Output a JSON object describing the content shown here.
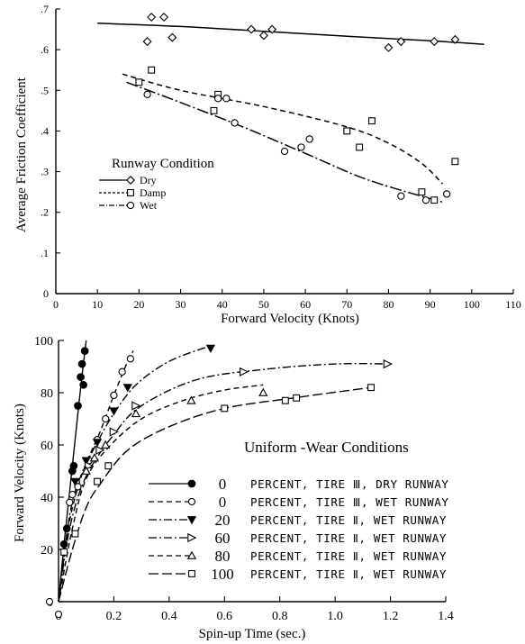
{
  "chart_data": [
    {
      "type": "scatter",
      "title": "",
      "xlabel": "Forward Velocity (Knots)",
      "ylabel": "Average Friction Coefficient",
      "xlim": [
        0,
        110
      ],
      "ylim": [
        0,
        0.7
      ],
      "xticks": [
        "0",
        "10",
        "20",
        "30",
        "40",
        "50",
        "60",
        "70",
        "80",
        "90",
        "100",
        "110"
      ],
      "yticks": [
        "0",
        ".1",
        ".2",
        ".3",
        ".4",
        ".5",
        ".6",
        ".7"
      ],
      "grid": false,
      "legend_title": "Runway Condition",
      "legend_position": "middle-left",
      "series": [
        {
          "name": "Dry",
          "marker": "diamond",
          "line": "solid",
          "points": [
            [
              22,
              0.62
            ],
            [
              23,
              0.68
            ],
            [
              26,
              0.68
            ],
            [
              28,
              0.63
            ],
            [
              47,
              0.65
            ],
            [
              50,
              0.635
            ],
            [
              52,
              0.65
            ],
            [
              80,
              0.605
            ],
            [
              83,
              0.62
            ],
            [
              91,
              0.62
            ],
            [
              96,
              0.625
            ]
          ],
          "fit": [
            [
              10,
              0.665
            ],
            [
              30,
              0.657
            ],
            [
              50,
              0.645
            ],
            [
              70,
              0.633
            ],
            [
              90,
              0.622
            ],
            [
              103,
              0.613
            ]
          ]
        },
        {
          "name": "Damp",
          "marker": "square",
          "line": "dashed",
          "points": [
            [
              20,
              0.52
            ],
            [
              23,
              0.55
            ],
            [
              38,
              0.45
            ],
            [
              39,
              0.49
            ],
            [
              70,
              0.4
            ],
            [
              73,
              0.36
            ],
            [
              76,
              0.425
            ],
            [
              88,
              0.25
            ],
            [
              91,
              0.23
            ],
            [
              96,
              0.325
            ]
          ],
          "fit": [
            [
              16,
              0.54
            ],
            [
              30,
              0.5
            ],
            [
              50,
              0.46
            ],
            [
              70,
              0.41
            ],
            [
              80,
              0.37
            ],
            [
              88,
              0.32
            ],
            [
              93,
              0.27
            ]
          ]
        },
        {
          "name": "Wet",
          "marker": "circle",
          "line": "long-dash-dot",
          "points": [
            [
              22,
              0.49
            ],
            [
              39,
              0.48
            ],
            [
              41,
              0.48
            ],
            [
              43,
              0.42
            ],
            [
              55,
              0.35
            ],
            [
              59,
              0.36
            ],
            [
              61,
              0.38
            ],
            [
              83,
              0.24
            ],
            [
              89,
              0.23
            ],
            [
              94,
              0.245
            ]
          ],
          "fit": [
            [
              17,
              0.52
            ],
            [
              30,
              0.47
            ],
            [
              45,
              0.41
            ],
            [
              60,
              0.345
            ],
            [
              75,
              0.28
            ],
            [
              93,
              0.225
            ]
          ]
        }
      ]
    },
    {
      "type": "line",
      "title": "",
      "xlabel": "Spin-up Time (sec.)",
      "ylabel": "Forward Velocity (Knots)",
      "xlim": [
        0,
        1.4
      ],
      "ylim": [
        0,
        100
      ],
      "xticks": [
        "0",
        "0.2",
        "0.4",
        "0.6",
        "0.8",
        "1.0",
        "1.2",
        "1.4"
      ],
      "yticks": [
        "0",
        "20",
        "40",
        "60",
        "80",
        "100"
      ],
      "grid": false,
      "legend_title": "Uniform -Wear   Conditions",
      "legend_position": "bottom-right",
      "series": [
        {
          "label_value": "0",
          "label_text": "PERCENT, TIRE Ⅲ, DRY RUNWAY",
          "marker": "circle-filled",
          "line": "solid",
          "points": [
            [
              0.02,
              22
            ],
            [
              0.03,
              28
            ],
            [
              0.05,
              50
            ],
            [
              0.055,
              52
            ],
            [
              0.07,
              75
            ],
            [
              0.08,
              86
            ],
            [
              0.085,
              91
            ],
            [
              0.09,
              83
            ],
            [
              0.095,
              96
            ]
          ],
          "curve": [
            [
              0,
              0
            ],
            [
              0.02,
              22
            ],
            [
              0.04,
              42
            ],
            [
              0.06,
              62
            ],
            [
              0.08,
              82
            ],
            [
              0.1,
              100
            ]
          ]
        },
        {
          "label_value": "0",
          "label_text": "PERCENT, TIRE Ⅲ, WET RUNWAY",
          "marker": "circle-open",
          "line": "dashed",
          "points": [
            [
              0.04,
              38
            ],
            [
              0.05,
              41
            ],
            [
              0.07,
              44
            ],
            [
              0.11,
              54
            ],
            [
              0.14,
              62
            ],
            [
              0.17,
              70
            ],
            [
              0.2,
              79
            ],
            [
              0.23,
              88
            ],
            [
              0.26,
              93
            ]
          ],
          "curve": [
            [
              0,
              0
            ],
            [
              0.03,
              25
            ],
            [
              0.06,
              40
            ],
            [
              0.1,
              53
            ],
            [
              0.15,
              65
            ],
            [
              0.2,
              79
            ],
            [
              0.25,
              92
            ],
            [
              0.27,
              96
            ]
          ]
        },
        {
          "label_value": "20",
          "label_text": "PERCENT, TIRE Ⅱ, WET RUNWAY",
          "marker": "triangle-down-filled",
          "line": "dash-dot",
          "points": [
            [
              0.06,
              46
            ],
            [
              0.1,
              54
            ],
            [
              0.14,
              61
            ],
            [
              0.2,
              73
            ],
            [
              0.25,
              82
            ],
            [
              0.55,
              97
            ]
          ],
          "curve": [
            [
              0,
              0
            ],
            [
              0.04,
              33
            ],
            [
              0.08,
              48
            ],
            [
              0.14,
              61
            ],
            [
              0.2,
              72
            ],
            [
              0.28,
              83
            ],
            [
              0.4,
              92
            ],
            [
              0.55,
              98
            ]
          ]
        },
        {
          "label_value": "60",
          "label_text": "PERCENT, TIRE Ⅱ, WET RUNWAY",
          "marker": "triangle-right-open",
          "line": "dash-dot",
          "points": [
            [
              0.11,
              52
            ],
            [
              0.15,
              58
            ],
            [
              0.2,
              65
            ],
            [
              0.28,
              75
            ],
            [
              0.67,
              88
            ],
            [
              1.19,
              91
            ]
          ],
          "curve": [
            [
              0,
              0
            ],
            [
              0.04,
              28
            ],
            [
              0.1,
              48
            ],
            [
              0.2,
              64
            ],
            [
              0.3,
              75
            ],
            [
              0.5,
              85
            ],
            [
              0.75,
              89
            ],
            [
              1.0,
              91
            ],
            [
              1.2,
              91
            ]
          ]
        },
        {
          "label_value": "80",
          "label_text": "PERCENT, TIRE Ⅱ, WET RUNWAY",
          "marker": "triangle-open",
          "line": "dashed",
          "points": [
            [
              0.1,
              50
            ],
            [
              0.13,
              55
            ],
            [
              0.17,
              60
            ],
            [
              0.28,
              72
            ],
            [
              0.48,
              77
            ],
            [
              0.74,
              80
            ]
          ],
          "curve": [
            [
              0,
              0
            ],
            [
              0.05,
              28
            ],
            [
              0.1,
              47
            ],
            [
              0.18,
              59
            ],
            [
              0.3,
              70
            ],
            [
              0.45,
              77
            ],
            [
              0.6,
              81
            ],
            [
              0.74,
              83
            ]
          ]
        },
        {
          "label_value": "100",
          "label_text": "PERCENT, TIRE Ⅱ, WET RUNWAY",
          "marker": "square-open",
          "line": "long-dash",
          "points": [
            [
              0.02,
              19
            ],
            [
              0.06,
              26
            ],
            [
              0.14,
              46
            ],
            [
              0.18,
              52
            ],
            [
              0.6,
              74
            ],
            [
              0.82,
              77
            ],
            [
              0.86,
              78
            ],
            [
              1.13,
              82
            ]
          ],
          "curve": [
            [
              0,
              0
            ],
            [
              0.05,
              20
            ],
            [
              0.1,
              36
            ],
            [
              0.15,
              45
            ],
            [
              0.25,
              58
            ],
            [
              0.4,
              67
            ],
            [
              0.6,
              74
            ],
            [
              0.85,
              78
            ],
            [
              1.13,
              82
            ]
          ]
        }
      ]
    }
  ]
}
